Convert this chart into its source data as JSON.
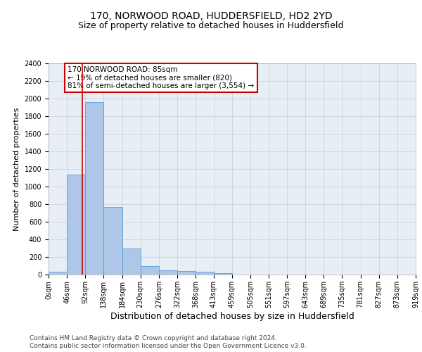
{
  "title1": "170, NORWOOD ROAD, HUDDERSFIELD, HD2 2YD",
  "title2": "Size of property relative to detached houses in Huddersfield",
  "xlabel": "Distribution of detached houses by size in Huddersfield",
  "ylabel": "Number of detached properties",
  "footnote1": "Contains HM Land Registry data © Crown copyright and database right 2024.",
  "footnote2": "Contains public sector information licensed under the Open Government Licence v3.0.",
  "bin_labels": [
    "0sqm",
    "46sqm",
    "92sqm",
    "138sqm",
    "184sqm",
    "230sqm",
    "276sqm",
    "322sqm",
    "368sqm",
    "413sqm",
    "459sqm",
    "505sqm",
    "551sqm",
    "597sqm",
    "643sqm",
    "689sqm",
    "735sqm",
    "781sqm",
    "827sqm",
    "873sqm",
    "919sqm"
  ],
  "bar_values": [
    35,
    1140,
    1960,
    770,
    300,
    100,
    48,
    40,
    30,
    20,
    0,
    0,
    0,
    0,
    0,
    0,
    0,
    0,
    0,
    0
  ],
  "bin_edges": [
    0,
    46,
    92,
    138,
    184,
    230,
    276,
    322,
    368,
    413,
    459,
    505,
    551,
    597,
    643,
    689,
    735,
    781,
    827,
    873,
    919
  ],
  "property_size": 85,
  "bar_color": "#aec6e8",
  "bar_edge_color": "#5b9bd5",
  "vline_color": "#cc0000",
  "annotation_line1": "170 NORWOOD ROAD: 85sqm",
  "annotation_line2": "← 19% of detached houses are smaller (820)",
  "annotation_line3": "81% of semi-detached houses are larger (3,554) →",
  "annotation_box_color": "#ffffff",
  "annotation_box_edge": "#cc0000",
  "ylim": [
    0,
    2400
  ],
  "yticks": [
    0,
    200,
    400,
    600,
    800,
    1000,
    1200,
    1400,
    1600,
    1800,
    2000,
    2200,
    2400
  ],
  "grid_color": "#cccccc",
  "bg_color": "#e8eef5",
  "fig_bg_color": "#ffffff",
  "title1_fontsize": 10,
  "title2_fontsize": 9,
  "xlabel_fontsize": 9,
  "ylabel_fontsize": 8,
  "tick_fontsize": 7,
  "annot_fontsize": 7.5,
  "footnote_fontsize": 6.5
}
